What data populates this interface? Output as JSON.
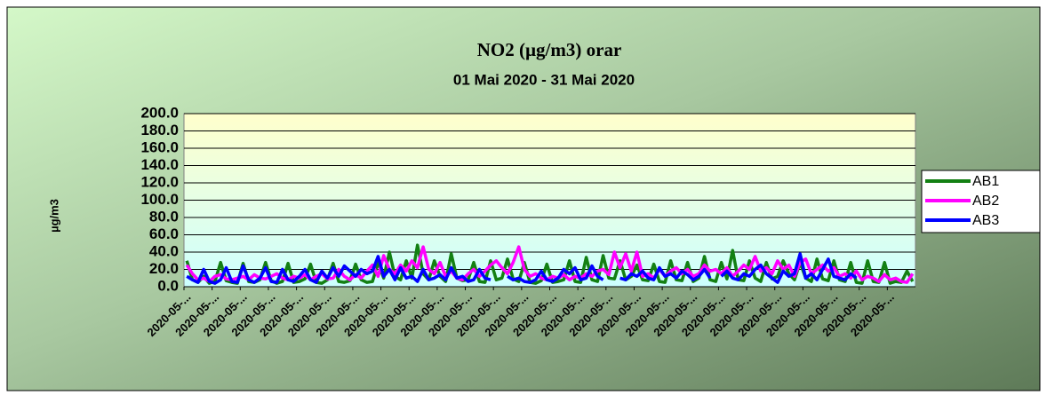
{
  "chart_data": {
    "type": "line",
    "title": "NO2 (µg/m3) orar",
    "subtitle": "01 Mai 2020 - 31 Mai 2020",
    "y_label": "µg/m3",
    "categories": [
      "2020-05-...",
      null,
      null,
      null,
      null,
      "2020-05-...",
      null,
      null,
      null,
      null,
      "2020-05-...",
      null,
      null,
      null,
      null,
      "2020-05-...",
      null,
      null,
      null,
      null,
      "2020-05-...",
      null,
      null,
      null,
      null,
      "2020-05-...",
      null,
      null,
      null,
      null,
      "2020-05-...",
      null,
      null,
      null,
      null,
      "2020-05-...",
      null,
      null,
      null,
      null,
      "2020-05-...",
      null,
      null,
      null,
      null,
      "2020-05-...",
      null,
      null,
      null,
      null,
      "2020-05-...",
      null,
      null,
      null,
      null,
      "2020-05-...",
      null,
      null,
      null,
      null,
      "2020-05-...",
      null,
      null,
      null,
      null,
      "2020-05-...",
      null,
      null,
      null,
      null,
      "2020-05-...",
      null,
      null,
      null,
      null,
      "2020-05-...",
      null,
      null,
      null,
      null,
      "2020-05-...",
      null,
      null,
      null,
      null,
      "2020-05-...",
      null,
      null,
      null,
      null,
      "2020-05-...",
      null,
      null,
      null,
      null,
      "2020-05-...",
      null,
      null,
      null,
      null,
      "2020-05-...",
      null,
      null,
      null,
      null,
      "2020-05-...",
      null,
      null,
      null,
      null,
      "2020-05-...",
      null,
      null,
      null,
      null,
      "2020-05-...",
      null,
      null,
      null,
      null,
      "2020-05-...",
      null,
      null,
      null,
      null,
      "2020-05-...",
      null,
      null,
      null,
      null
    ],
    "series": [
      {
        "name": "AB1",
        "color": "#138013",
        "values": [
          30,
          8,
          5,
          12,
          4,
          6,
          28,
          7,
          5,
          4,
          27,
          6,
          5,
          8,
          28,
          7,
          4,
          6,
          27,
          5,
          6,
          9,
          26,
          5,
          4,
          8,
          27,
          6,
          5,
          7,
          26,
          8,
          5,
          6,
          28,
          10,
          40,
          12,
          8,
          30,
          10,
          48,
          15,
          8,
          30,
          12,
          6,
          38,
          10,
          7,
          8,
          28,
          6,
          5,
          30,
          8,
          10,
          32,
          9,
          6,
          28,
          5,
          4,
          7,
          26,
          5,
          6,
          8,
          30,
          6,
          5,
          34,
          8,
          6,
          36,
          10,
          9,
          30,
          8,
          12,
          25,
          8,
          7,
          26,
          6,
          5,
          30,
          8,
          7,
          28,
          6,
          10,
          35,
          8,
          6,
          28,
          9,
          42,
          8,
          7,
          30,
          10,
          6,
          28,
          9,
          12,
          30,
          15,
          8,
          28,
          10,
          6,
          32,
          9,
          7,
          30,
          8,
          6,
          28,
          5,
          4,
          30,
          6,
          5,
          28,
          4,
          6,
          5,
          18,
          6
        ]
      },
      {
        "name": "AB2",
        "color": "#ff00ff",
        "values": [
          25,
          15,
          8,
          10,
          6,
          12,
          14,
          9,
          8,
          10,
          12,
          8,
          14,
          10,
          9,
          12,
          15,
          10,
          8,
          12,
          10,
          14,
          8,
          12,
          15,
          9,
          10,
          20,
          12,
          8,
          14,
          10,
          18,
          25,
          12,
          36,
          20,
          15,
          25,
          18,
          30,
          22,
          46,
          20,
          15,
          28,
          12,
          18,
          10,
          8,
          15,
          20,
          12,
          18,
          25,
          30,
          22,
          15,
          28,
          46,
          20,
          12,
          15,
          10,
          8,
          12,
          10,
          14,
          8,
          12,
          10,
          15,
          12,
          18,
          20,
          14,
          40,
          22,
          38,
          18,
          40,
          12,
          15,
          10,
          20,
          12,
          18,
          22,
          15,
          20,
          12,
          15,
          25,
          18,
          20,
          15,
          22,
          12,
          18,
          25,
          20,
          35,
          18,
          22,
          15,
          30,
          20,
          25,
          12,
          28,
          32,
          15,
          20,
          25,
          18,
          22,
          12,
          15,
          10,
          18,
          8,
          12,
          10,
          6,
          14,
          8,
          10,
          6,
          5,
          15
        ]
      },
      {
        "name": "AB3",
        "color": "#0000ff",
        "values": [
          12,
          8,
          5,
          20,
          6,
          4,
          8,
          22,
          6,
          5,
          24,
          8,
          5,
          10,
          22,
          6,
          5,
          20,
          8,
          6,
          12,
          20,
          8,
          5,
          18,
          10,
          22,
          12,
          24,
          18,
          12,
          20,
          15,
          18,
          35,
          12,
          20,
          8,
          22,
          10,
          12,
          6,
          20,
          8,
          10,
          14,
          8,
          22,
          10,
          12,
          6,
          8,
          20,
          10,
          8,
          null,
          null,
          12,
          8,
          10,
          6,
          5,
          8,
          18,
          8,
          6,
          10,
          20,
          15,
          22,
          8,
          10,
          24,
          12,
          8,
          null,
          null,
          10,
          8,
          15,
          12,
          18,
          10,
          8,
          22,
          12,
          15,
          10,
          18,
          14,
          8,
          12,
          20,
          10,
          null,
          12,
          18,
          10,
          8,
          15,
          12,
          20,
          25,
          15,
          10,
          5,
          18,
          12,
          15,
          38,
          10,
          15,
          8,
          20,
          32,
          12,
          10,
          8,
          15,
          10,
          null,
          null,
          null,
          null,
          null,
          null,
          null,
          null,
          null,
          null
        ]
      }
    ],
    "ylim": [
      0,
      200
    ],
    "yticks": [
      {
        "value": 0,
        "label": "0.0"
      },
      {
        "value": 20,
        "label": "20.0"
      },
      {
        "value": 40,
        "label": "40.0"
      },
      {
        "value": 60,
        "label": "60.0"
      },
      {
        "value": 80,
        "label": "80.0"
      },
      {
        "value": 100,
        "label": "100.0"
      },
      {
        "value": 120,
        "label": "120.0"
      },
      {
        "value": 140,
        "label": "140.0"
      },
      {
        "value": 160,
        "label": "160.0"
      },
      {
        "value": 180,
        "label": "180.0"
      },
      {
        "value": 200,
        "label": "200.0"
      }
    ],
    "grid": true,
    "legend": "right"
  }
}
